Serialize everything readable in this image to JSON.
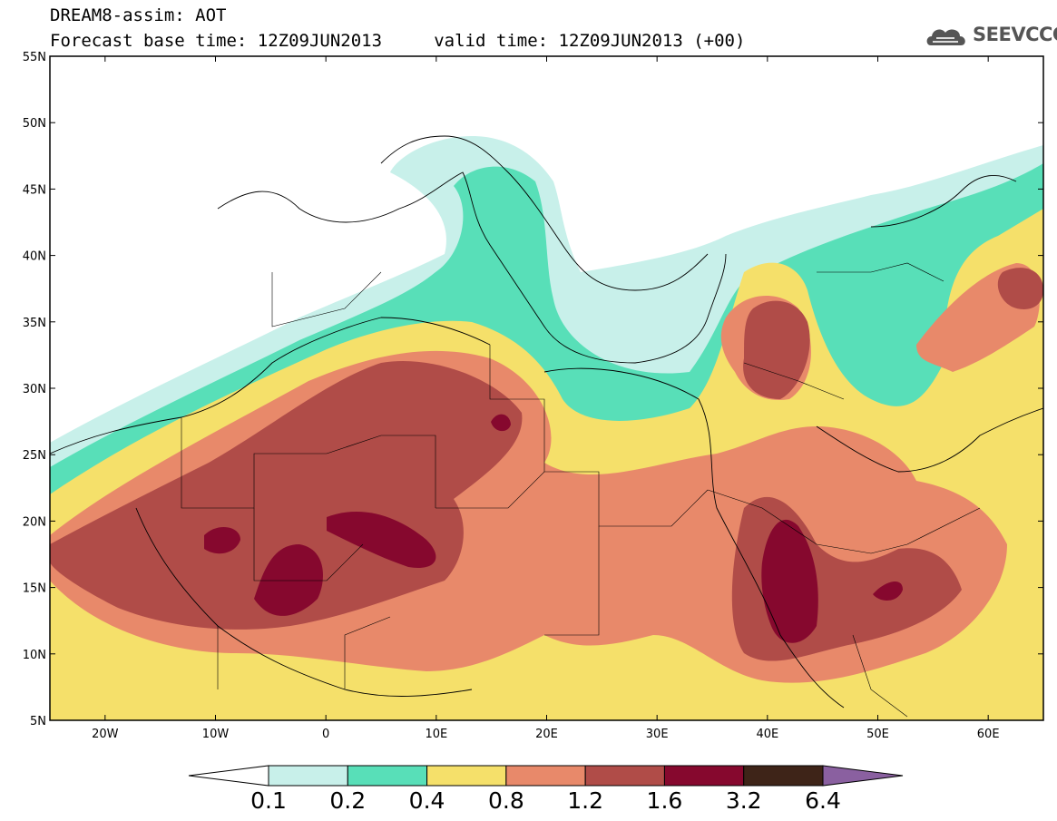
{
  "title": {
    "line1": "DREAM8-assim: AOT",
    "line2": "Forecast base time: 12Z09JUN2013     valid time: 12Z09JUN2013 (+00)"
  },
  "logo": {
    "text": "SEEVCCC",
    "icon": "cloud-logo-icon"
  },
  "map": {
    "lon_range": [
      -25,
      65
    ],
    "lat_range": [
      5,
      55
    ],
    "lat_ticks": [
      "55N",
      "50N",
      "45N",
      "40N",
      "35N",
      "30N",
      "25N",
      "20N",
      "15N",
      "10N",
      "5N"
    ],
    "lon_ticks": [
      "20W",
      "10W",
      "0",
      "10E",
      "20E",
      "30E",
      "40E",
      "50E",
      "60E"
    ],
    "field": "Aerosol optical thickness (dust)",
    "background": "#ffffff"
  },
  "colorbar": {
    "labels": [
      "0.1",
      "0.2",
      "0.4",
      "0.8",
      "1.2",
      "1.6",
      "3.2",
      "6.4"
    ],
    "colors": [
      "#ffffff",
      "#c8f0ea",
      "#58dfb8",
      "#f5e06a",
      "#e8896a",
      "#b04c48",
      "#86082e",
      "#3e2418",
      "#8a60a0"
    ]
  }
}
